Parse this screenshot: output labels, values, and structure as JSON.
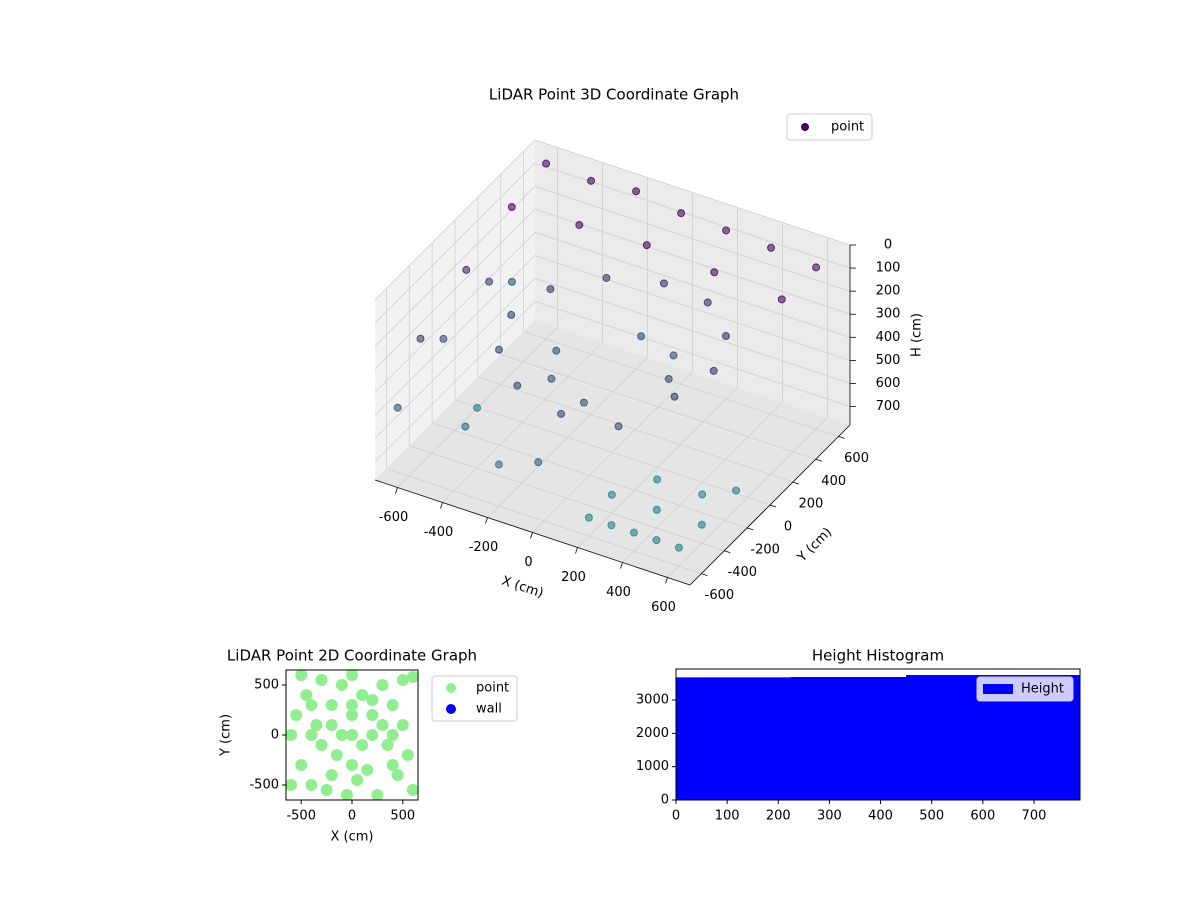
{
  "chart_data": [
    {
      "type": "scatter3d",
      "title": "LiDAR Point 3D Coordinate Graph",
      "xlabel": "X (cm)",
      "ylabel": "Y (cm)",
      "zlabel": "H (cm)",
      "xlim": [
        -700,
        700
      ],
      "ylim": [
        -700,
        700
      ],
      "zlim": [
        780,
        0
      ],
      "xticks": [
        -600,
        -400,
        -200,
        0,
        200,
        400,
        600
      ],
      "yticks": [
        -600,
        -400,
        -200,
        0,
        200,
        400,
        600
      ],
      "zticks": [
        0,
        100,
        200,
        300,
        400,
        500,
        600,
        700
      ],
      "grid": true,
      "legend": "upper right",
      "colormap": [
        "#440154",
        "#21918c"
      ],
      "series": [
        {
          "name": "point",
          "color": "#440154",
          "x": [
            -600,
            -400,
            -200,
            0,
            200,
            400,
            600,
            -600,
            -300,
            0,
            300,
            600,
            -650,
            -650,
            -650,
            -650,
            -650,
            -650,
            450,
            390,
            225,
            0,
            -225,
            -390,
            -450,
            -390,
            -225,
            0,
            225,
            390,
            250,
            0,
            -250,
            0,
            180,
            -180,
            200,
            300,
            400,
            500,
            600,
            200,
            400,
            600,
            300,
            500,
            600,
            -400,
            -200,
            0,
            -500
          ],
          "y": [
            600,
            600,
            600,
            600,
            600,
            600,
            600,
            300,
            300,
            300,
            300,
            300,
            -400,
            -200,
            0,
            200,
            400,
            -600,
            0,
            225,
            390,
            450,
            390,
            225,
            0,
            -225,
            -390,
            -450,
            -390,
            -225,
            0,
            250,
            0,
            -250,
            180,
            -180,
            -600,
            -600,
            -600,
            -600,
            -600,
            -400,
            -400,
            -400,
            -200,
            -200,
            -100,
            -500,
            -600,
            -650,
            -200
          ],
          "z": [
            20,
            30,
            10,
            40,
            50,
            60,
            80,
            60,
            40,
            30,
            50,
            70,
            300,
            400,
            200,
            350,
            450,
            500,
            280,
            260,
            250,
            270,
            290,
            310,
            330,
            350,
            370,
            390,
            400,
            300,
            380,
            400,
            420,
            440,
            390,
            430,
            700,
            700,
            700,
            700,
            700,
            700,
            700,
            700,
            700,
            700,
            700,
            550,
            600,
            500,
            650
          ]
        }
      ]
    },
    {
      "type": "scatter",
      "title": "LiDAR Point 2D Coordinate Graph",
      "xlabel": "X (cm)",
      "ylabel": "Y (cm)",
      "xlim": [
        -650,
        650
      ],
      "ylim": [
        -650,
        650
      ],
      "xticks": [
        -500,
        0,
        500
      ],
      "yticks": [
        -500,
        0,
        500
      ],
      "legend": "outside right",
      "series": [
        {
          "name": "point",
          "color": "#90ee90",
          "x": [
            -600,
            -550,
            -500,
            -450,
            -400,
            -350,
            -300,
            -250,
            -200,
            -150,
            -100,
            -50,
            0,
            50,
            100,
            150,
            200,
            250,
            300,
            350,
            400,
            450,
            500,
            550,
            600,
            -400,
            -300,
            -200,
            -100,
            0,
            100,
            200,
            300,
            400,
            -400,
            -200,
            0,
            200,
            400,
            -600,
            600,
            -500,
            500,
            0,
            0
          ],
          "y": [
            0,
            200,
            -300,
            400,
            -500,
            100,
            550,
            -550,
            300,
            -200,
            500,
            -600,
            600,
            -450,
            400,
            -350,
            200,
            -600,
            500,
            -100,
            300,
            -400,
            100,
            -200,
            580,
            0,
            -100,
            100,
            0,
            0,
            -100,
            0,
            100,
            0,
            300,
            -400,
            300,
            350,
            -300,
            -500,
            -550,
            600,
            550,
            -300,
            200
          ]
        },
        {
          "name": "wall",
          "color": "#0000ff",
          "x": [],
          "y": []
        }
      ]
    },
    {
      "type": "histogram",
      "title": "Height Histogram",
      "bins": [
        0,
        225,
        450,
        620,
        790
      ],
      "values": [
        3680,
        3690,
        3750,
        3750
      ],
      "name": "Height",
      "color": "#0000ff",
      "legend": "upper right",
      "xlim": [
        0,
        790
      ],
      "ylim": [
        0,
        3930
      ],
      "xticks": [
        0,
        100,
        200,
        300,
        400,
        500,
        600,
        700
      ],
      "yticks": [
        0,
        1000,
        2000,
        3000
      ]
    }
  ]
}
